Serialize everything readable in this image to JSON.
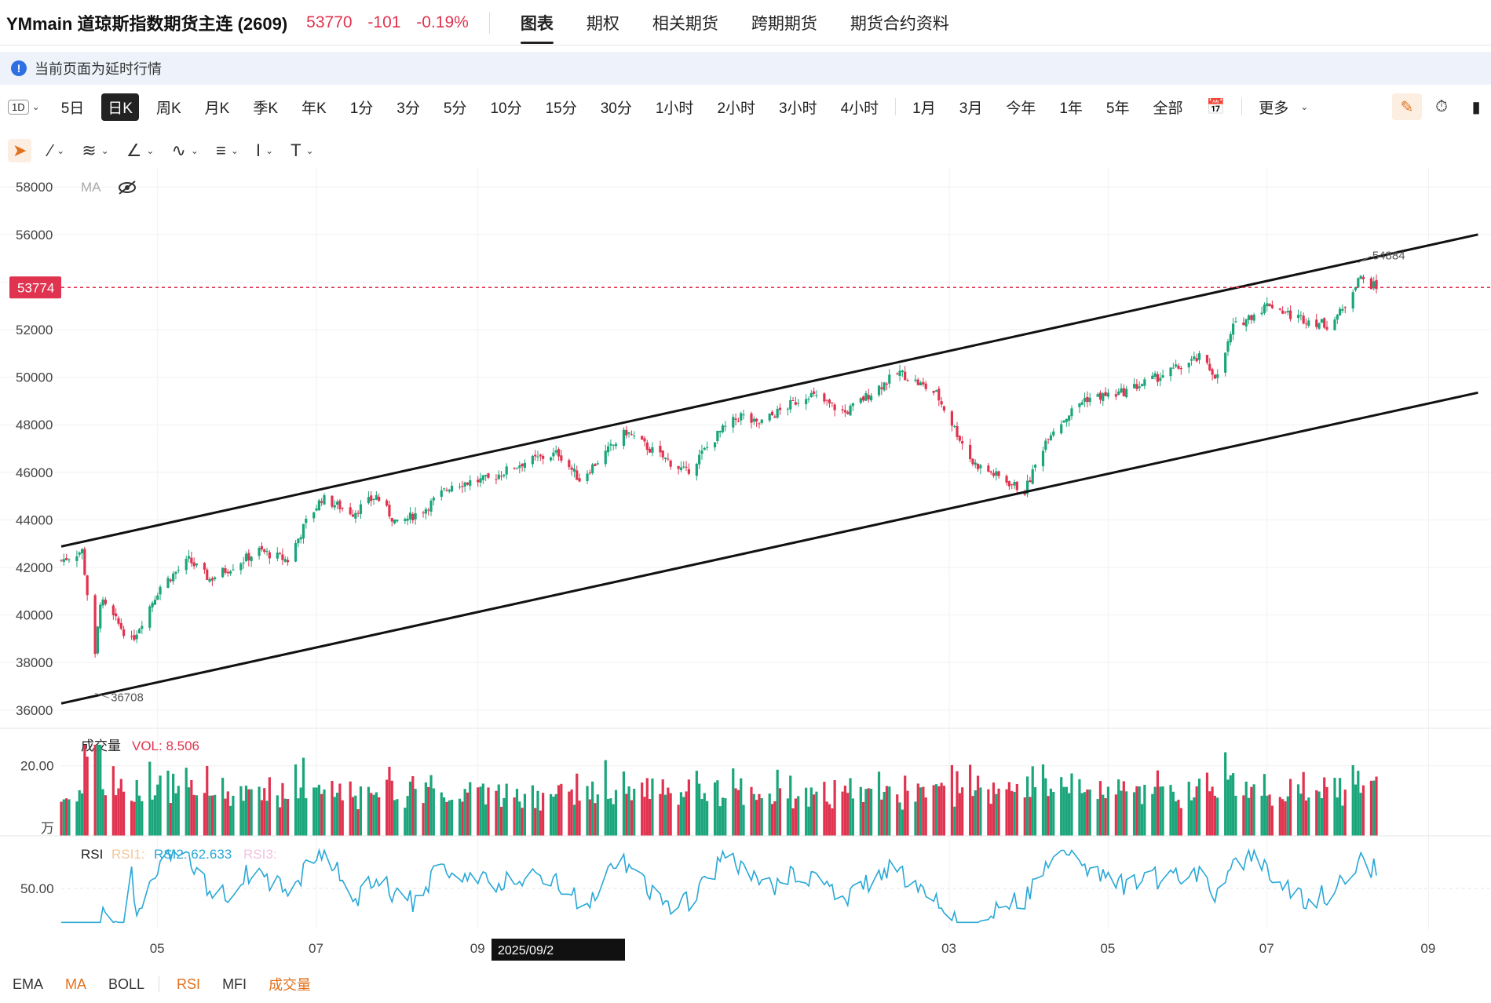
{
  "header": {
    "title": "YMmain 道琼斯指数期货主连 (2609)",
    "last": "53770",
    "change": "-101",
    "change_pct": "-0.19%",
    "tabs": [
      {
        "label": "图表",
        "active": true
      },
      {
        "label": "期权",
        "active": false
      },
      {
        "label": "相关期货",
        "active": false
      },
      {
        "label": "跨期期货",
        "active": false
      },
      {
        "label": "期货合约资料",
        "active": false
      }
    ]
  },
  "notice": {
    "text": "当前页面为延时行情"
  },
  "periods": {
    "first": "1D",
    "items": [
      {
        "label": "5日",
        "active": false
      },
      {
        "label": "日K",
        "active": true
      },
      {
        "label": "周K",
        "active": false
      },
      {
        "label": "月K",
        "active": false
      },
      {
        "label": "季K",
        "active": false
      },
      {
        "label": "年K",
        "active": false
      },
      {
        "label": "1分",
        "active": false
      },
      {
        "label": "3分",
        "active": false
      },
      {
        "label": "5分",
        "active": false
      },
      {
        "label": "10分",
        "active": false
      },
      {
        "label": "15分",
        "active": false
      },
      {
        "label": "30分",
        "active": false
      },
      {
        "label": "1小时",
        "active": false
      },
      {
        "label": "2小时",
        "active": false
      },
      {
        "label": "3小时",
        "active": false
      },
      {
        "label": "4小时",
        "active": false
      }
    ],
    "ranges": [
      "1月",
      "3月",
      "今年",
      "1年",
      "5年",
      "全部"
    ],
    "more": "更多"
  },
  "indicators": {
    "main": [
      "EMA",
      "MA",
      "BOLL"
    ],
    "sub": [
      "RSI",
      "MFI",
      "成交量"
    ],
    "active": [
      "MA",
      "RSI",
      "成交量"
    ]
  },
  "colors": {
    "up": "#1aa57a",
    "down": "#e0334f",
    "rsi": "#29a8d6",
    "accent": "#e2711d"
  },
  "chart_data": {
    "type": "candlestick",
    "main": {
      "ma_label": "MA",
      "y_ticks": [
        58000,
        56000,
        54000,
        52000,
        50000,
        48000,
        46000,
        44000,
        42000,
        40000,
        38000,
        36000
      ],
      "ylim": [
        35200,
        58800
      ],
      "current_price_tag": "53774",
      "high_label": "54884",
      "low_label": "36708",
      "trend_channel_upper": [
        {
          "date": "2025-03-25",
          "value": 42880
        },
        {
          "date": "2026-09-20",
          "value": 56000
        }
      ],
      "trend_channel_lower": [
        {
          "date": "2025-03-25",
          "value": 36280
        },
        {
          "date": "2026-09-20",
          "value": 49350
        }
      ],
      "close_path": [
        {
          "date": "2025-03-25",
          "value": 42300
        },
        {
          "date": "2025-04-02",
          "value": 42700
        },
        {
          "date": "2025-04-07",
          "value": 38200
        },
        {
          "date": "2025-04-09",
          "value": 40600
        },
        {
          "date": "2025-04-21",
          "value": 38900
        },
        {
          "date": "2025-05-02",
          "value": 41200
        },
        {
          "date": "2025-05-13",
          "value": 42300
        },
        {
          "date": "2025-05-21",
          "value": 41500
        },
        {
          "date": "2025-06-09",
          "value": 42700
        },
        {
          "date": "2025-06-20",
          "value": 42300
        },
        {
          "date": "2025-06-27",
          "value": 43900
        },
        {
          "date": "2025-07-03",
          "value": 44900
        },
        {
          "date": "2025-07-15",
          "value": 44300
        },
        {
          "date": "2025-07-24",
          "value": 45000
        },
        {
          "date": "2025-08-01",
          "value": 43800
        },
        {
          "date": "2025-08-12",
          "value": 44500
        },
        {
          "date": "2025-08-22",
          "value": 45500
        },
        {
          "date": "2025-09-05",
          "value": 45700
        },
        {
          "date": "2025-09-18",
          "value": 46400
        },
        {
          "date": "2025-10-02",
          "value": 46800
        },
        {
          "date": "2025-10-10",
          "value": 45700
        },
        {
          "date": "2025-10-28",
          "value": 47700
        },
        {
          "date": "2025-11-07",
          "value": 46900
        },
        {
          "date": "2025-11-20",
          "value": 46000
        },
        {
          "date": "2025-12-03",
          "value": 47700
        },
        {
          "date": "2025-12-11",
          "value": 48400
        },
        {
          "date": "2025-12-17",
          "value": 48000
        },
        {
          "date": "2026-01-06",
          "value": 49300
        },
        {
          "date": "2026-01-20",
          "value": 48500
        },
        {
          "date": "2026-02-02",
          "value": 49600
        },
        {
          "date": "2026-02-10",
          "value": 50200
        },
        {
          "date": "2026-02-24",
          "value": 49300
        },
        {
          "date": "2026-03-10",
          "value": 46400
        },
        {
          "date": "2026-03-30",
          "value": 45200
        },
        {
          "date": "2026-04-08",
          "value": 47600
        },
        {
          "date": "2026-04-22",
          "value": 49100
        },
        {
          "date": "2026-05-05",
          "value": 49300
        },
        {
          "date": "2026-05-20",
          "value": 50000
        },
        {
          "date": "2026-06-05",
          "value": 50800
        },
        {
          "date": "2026-06-12",
          "value": 50000
        },
        {
          "date": "2026-06-18",
          "value": 52100
        },
        {
          "date": "2026-07-02",
          "value": 53100
        },
        {
          "date": "2026-07-10",
          "value": 52600
        },
        {
          "date": "2026-07-24",
          "value": 52200
        },
        {
          "date": "2026-07-30",
          "value": 52800
        },
        {
          "date": "2026-08-05",
          "value": 54200
        },
        {
          "date": "2026-08-12",
          "value": 53770
        }
      ]
    },
    "volume": {
      "title": "成交量",
      "value_label": "VOL: 8.506",
      "y_tick": "20.00",
      "unit": "万",
      "ylim": [
        0,
        28
      ]
    },
    "rsi": {
      "title": "RSI",
      "labels": [
        "RSI1:",
        "RSI2: 62.633",
        "RSI3:"
      ],
      "y_tick": "50.00",
      "ylim": [
        20,
        80
      ]
    },
    "x_axis": {
      "range": [
        "2025-03-25",
        "2026-09-25"
      ],
      "ticks": [
        {
          "label": "05",
          "date": "2025-05-01"
        },
        {
          "label": "07",
          "date": "2025-07-01"
        },
        {
          "label": "09",
          "date": "2025-09-01"
        },
        {
          "label": "03",
          "date": "2026-03-01"
        },
        {
          "label": "05",
          "date": "2026-05-01"
        },
        {
          "label": "07",
          "date": "2026-07-01"
        },
        {
          "label": "09",
          "date": "2026-09-01"
        }
      ],
      "crosshair_label": "2025/09/2"
    }
  }
}
